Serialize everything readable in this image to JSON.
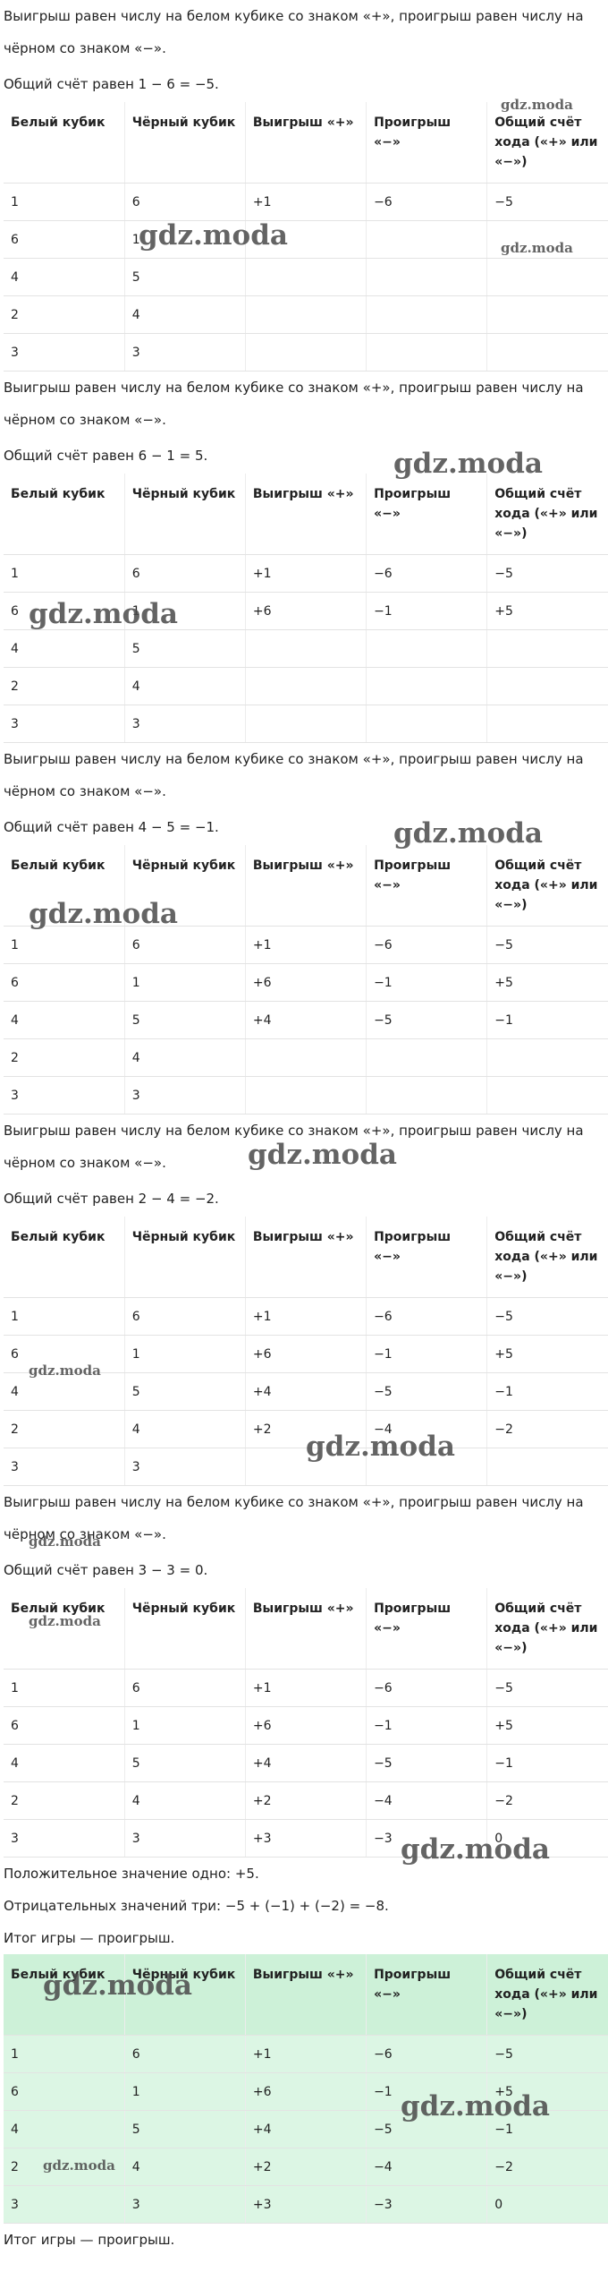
{
  "sections": [
    {
      "intro": "Выигрыш равен числу на белом кубике со знаком «+», проигрыш равен числу на чёрном со знаком «−».",
      "score": "Общий счёт равен 1 − 6 = −5.",
      "table": {
        "header": [
          "Белый кубик",
          "Чёрный кубик",
          "Выигрыш «+»",
          "Проигрыш «−»",
          "Общий счёт хода («+» или «−»)"
        ],
        "rows": [
          [
            "1",
            "6",
            "+1",
            "−6",
            "−5"
          ],
          [
            "6",
            "1",
            null,
            null,
            null
          ],
          [
            "4",
            "5",
            null,
            null,
            null
          ],
          [
            "2",
            "4",
            null,
            null,
            null
          ],
          [
            "3",
            "3",
            null,
            null,
            null
          ]
        ]
      }
    },
    {
      "intro": "Выигрыш равен числу на белом кубике со знаком «+», проигрыш равен числу на чёрном со знаком «−».",
      "score": "Общий счёт равен 6 − 1 = 5.",
      "table": {
        "header": [
          "Белый кубик",
          "Чёрный кубик",
          "Выигрыш «+»",
          "Проигрыш «−»",
          "Общий счёт хода («+» или «−»)"
        ],
        "rows": [
          [
            "1",
            "6",
            "+1",
            "−6",
            "−5"
          ],
          [
            "6",
            "1",
            "+6",
            "−1",
            "+5"
          ],
          [
            "4",
            "5",
            null,
            null,
            null
          ],
          [
            "2",
            "4",
            null,
            null,
            null
          ],
          [
            "3",
            "3",
            null,
            null,
            null
          ]
        ]
      }
    },
    {
      "intro": "Выигрыш равен числу на белом кубике со знаком «+», проигрыш равен числу на чёрном со знаком «−».",
      "score": "Общий счёт равен 4 − 5 = −1.",
      "table": {
        "header": [
          "Белый кубик",
          "Чёрный кубик",
          "Выигрыш «+»",
          "Проигрыш «−»",
          "Общий счёт хода («+» или «−»)"
        ],
        "rows": [
          [
            "1",
            "6",
            "+1",
            "−6",
            "−5"
          ],
          [
            "6",
            "1",
            "+6",
            "−1",
            "+5"
          ],
          [
            "4",
            "5",
            "+4",
            "−5",
            "−1"
          ],
          [
            "2",
            "4",
            null,
            null,
            null
          ],
          [
            "3",
            "3",
            null,
            null,
            null
          ]
        ]
      }
    },
    {
      "intro": "Выигрыш равен числу на белом кубике со знаком «+», проигрыш равен числу на чёрном со знаком «−».",
      "score": "Общий счёт равен 2 − 4 = −2.",
      "table": {
        "header": [
          "Белый кубик",
          "Чёрный кубик",
          "Выигрыш «+»",
          "Проигрыш «−»",
          "Общий счёт хода («+» или «−»)"
        ],
        "rows": [
          [
            "1",
            "6",
            "+1",
            "−6",
            "−5"
          ],
          [
            "6",
            "1",
            "+6",
            "−1",
            "+5"
          ],
          [
            "4",
            "5",
            "+4",
            "−5",
            "−1"
          ],
          [
            "2",
            "4",
            "+2",
            "−4",
            "−2"
          ],
          [
            "3",
            "3",
            null,
            null,
            null
          ]
        ]
      }
    },
    {
      "intro": "Выигрыш равен числу на белом кубике со знаком «+», проигрыш равен числу на чёрном со знаком «−».",
      "score": "Общий счёт равен 3 − 3 = 0.",
      "table": {
        "header": [
          "Белый кубик",
          "Чёрный кубик",
          "Выигрыш «+»",
          "Проигрыш «−»",
          "Общий счёт хода («+» или «−»)"
        ],
        "rows": [
          [
            "1",
            "6",
            "+1",
            "−6",
            "−5"
          ],
          [
            "6",
            "1",
            "+6",
            "−1",
            "+5"
          ],
          [
            "4",
            "5",
            "+4",
            "−5",
            "−1"
          ],
          [
            "2",
            "4",
            "+2",
            "−4",
            "−2"
          ],
          [
            "3",
            "3",
            "+3",
            "−3",
            "0"
          ]
        ]
      }
    }
  ],
  "summary": {
    "lines": [
      "Положительное значение одно: +5.",
      "Отрицательных значений три: −5 + (−1) + (−2) = −8.",
      "Итог игры — проигрыш."
    ],
    "table": {
      "header": [
        "Белый кубик",
        "Чёрный кубик",
        "Выигрыш «+»",
        "Проигрыш «−»",
        "Общий счёт хода («+» или «−»)"
      ],
      "rows": [
        [
          "1",
          "6",
          "+1",
          "−6",
          "−5"
        ],
        [
          "6",
          "1",
          "+6",
          "−1",
          "+5"
        ],
        [
          "4",
          "5",
          "+4",
          "−5",
          "−1"
        ],
        [
          "2",
          "4",
          "+2",
          "−4",
          "−2"
        ],
        [
          "3",
          "3",
          "+3",
          "−3",
          "0"
        ]
      ]
    },
    "conclusion": "Итог игры — проигрыш."
  },
  "watermarks": [
    "gdz.moda",
    "gdz.moda",
    "gdz.moda",
    "gdz.moda",
    "gdz.moda",
    "gdz.moda",
    "gdz.moda",
    "gdz.moda",
    "gdz.moda",
    "gdz.moda",
    "gdz.moda",
    "gdz.moda",
    "gdz.moda",
    "gdz.moda",
    "gdz.moda",
    "gdz.moda"
  ]
}
